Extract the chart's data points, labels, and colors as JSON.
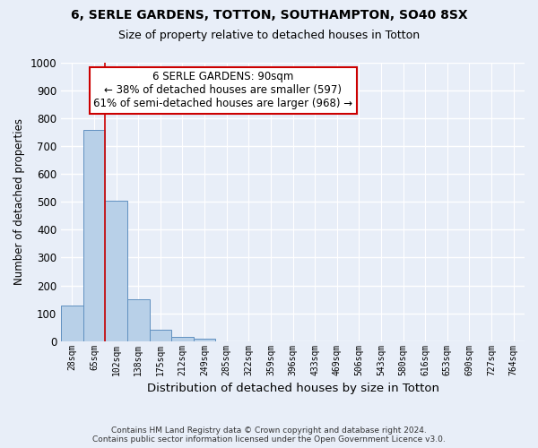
{
  "title_line1": "6, SERLE GARDENS, TOTTON, SOUTHAMPTON, SO40 8SX",
  "title_line2": "Size of property relative to detached houses in Totton",
  "xlabel": "Distribution of detached houses by size in Totton",
  "ylabel": "Number of detached properties",
  "footnote_line1": "Contains HM Land Registry data © Crown copyright and database right 2024.",
  "footnote_line2": "Contains public sector information licensed under the Open Government Licence v3.0.",
  "bin_labels": [
    "28sqm",
    "65sqm",
    "102sqm",
    "138sqm",
    "175sqm",
    "212sqm",
    "249sqm",
    "285sqm",
    "322sqm",
    "359sqm",
    "396sqm",
    "433sqm",
    "469sqm",
    "506sqm",
    "543sqm",
    "580sqm",
    "616sqm",
    "653sqm",
    "690sqm",
    "727sqm",
    "764sqm"
  ],
  "bar_values": [
    128,
    760,
    505,
    150,
    40,
    14,
    8,
    0,
    0,
    0,
    0,
    0,
    0,
    0,
    0,
    0,
    0,
    0,
    0,
    0,
    0
  ],
  "bar_color": "#b8d0e8",
  "bar_edge_color": "#6090c0",
  "marker_label_line1": "6 SERLE GARDENS: 90sqm",
  "marker_label_line2": "← 38% of detached houses are smaller (597)",
  "marker_label_line3": "61% of semi-detached houses are larger (968) →",
  "box_edge_color": "#cc0000",
  "vline_color": "#cc0000",
  "ylim": [
    0,
    1000
  ],
  "yticks": [
    0,
    100,
    200,
    300,
    400,
    500,
    600,
    700,
    800,
    900,
    1000
  ],
  "background_color": "#e8eef8",
  "grid_color": "white",
  "figsize": [
    6.0,
    5.0
  ],
  "dpi": 100
}
